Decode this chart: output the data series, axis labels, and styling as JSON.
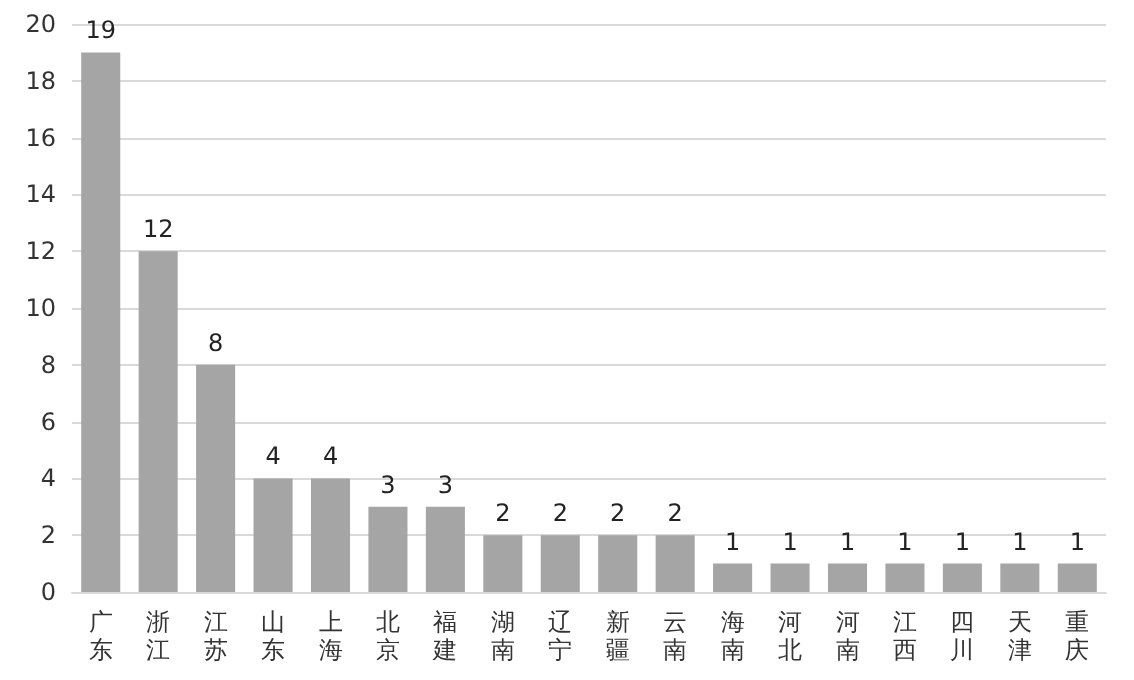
{
  "chart_data": {
    "type": "bar",
    "categories": [
      "广东",
      "浙江",
      "江苏",
      "山东",
      "上海",
      "北京",
      "福建",
      "湖南",
      "辽宁",
      "新疆",
      "云南",
      "海南",
      "河北",
      "河南",
      "江西",
      "四川",
      "天津",
      "重庆"
    ],
    "values": [
      19,
      12,
      8,
      4,
      4,
      3,
      3,
      2,
      2,
      2,
      2,
      1,
      1,
      1,
      1,
      1,
      1,
      1
    ],
    "color": "#a5a5a5",
    "ylim": [
      0,
      20
    ],
    "yticks": [
      0,
      2,
      4,
      6,
      8,
      10,
      12,
      14,
      16,
      18,
      20
    ],
    "grid": "y",
    "data_labels": true
  }
}
